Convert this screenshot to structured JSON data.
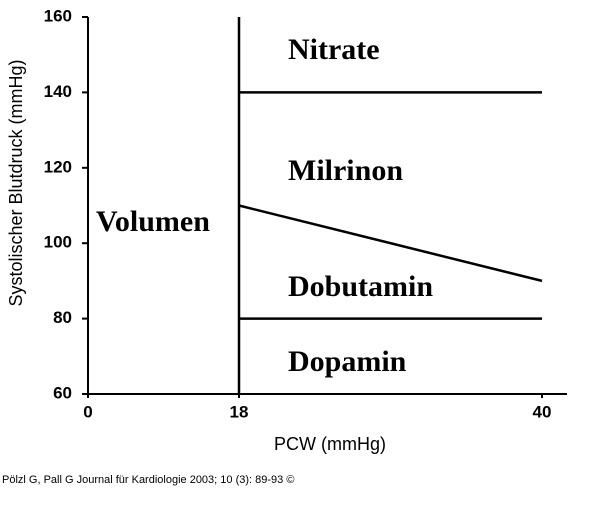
{
  "chart_data": {
    "type": "line",
    "x_label": "PCW (mmHg)",
    "y_label": "Systolischer  Blutdruck (mmHg)",
    "xlim": [
      0,
      42
    ],
    "xticks": [
      0,
      18,
      40
    ],
    "ylim": [
      60,
      160
    ],
    "yticks": [
      60,
      80,
      100,
      120,
      140,
      160
    ],
    "color": "#000000",
    "series": [
      {
        "x": [
          18,
          18
        ],
        "values": [
          60,
          160
        ]
      },
      {
        "x": [
          18,
          40
        ],
        "values": [
          140,
          140
        ]
      },
      {
        "x": [
          18,
          40
        ],
        "values": [
          110,
          90
        ]
      },
      {
        "x": [
          18,
          40
        ],
        "values": [
          80,
          80
        ]
      }
    ],
    "annotations": [
      "Nitrate",
      "Milrinon",
      "Volumen",
      "Dobutamin",
      "Dopamin"
    ]
  },
  "footer": "Pölzl G, Pall G Journal für Kardiologie 2003; 10 (3): 89-93 ©"
}
